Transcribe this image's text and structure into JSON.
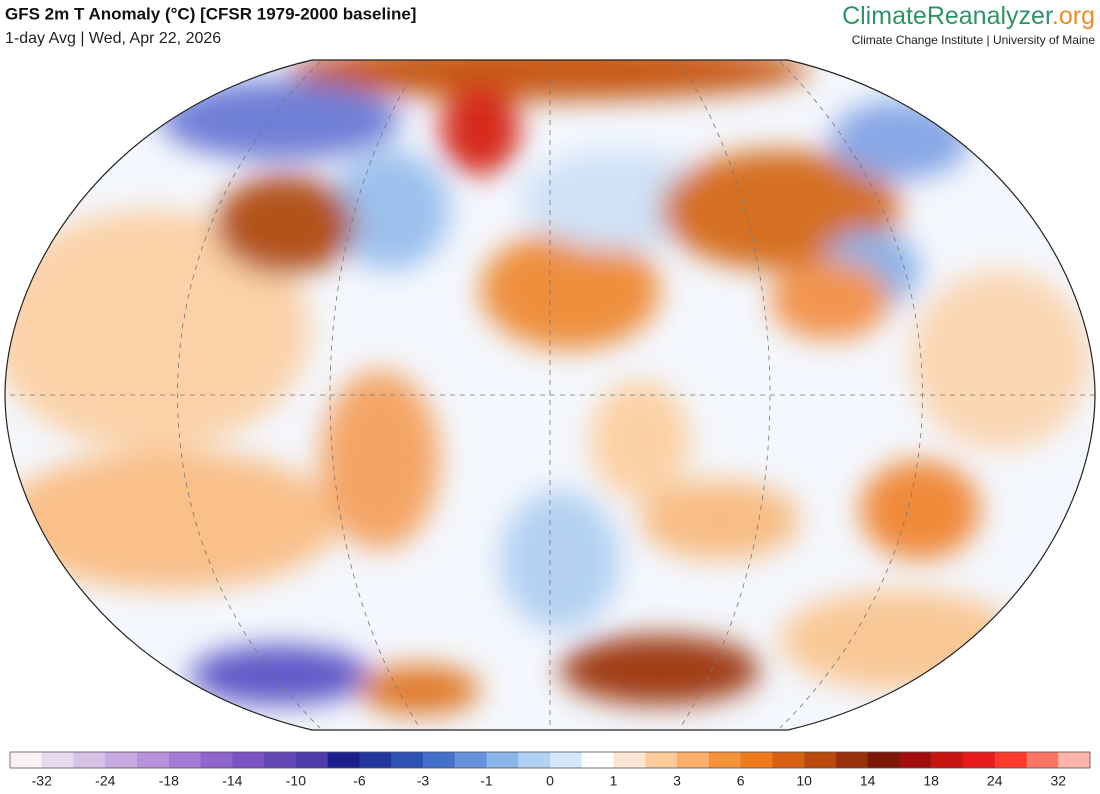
{
  "header": {
    "title": "GFS 2m T Anomaly (°C) [CFSR 1979-2000 baseline]",
    "subtitle": "1-day Avg | Wed, Apr 22, 2026"
  },
  "branding": {
    "name": "ClimateReanalyzer",
    "suffix": ".org",
    "tagline": "Climate Change Institute | University of Maine"
  },
  "colorbar": {
    "colors": [
      "#fdf0f2",
      "#e9d9ef",
      "#d9c2e8",
      "#c8a9e2",
      "#b892dc",
      "#a47bd5",
      "#9065cd",
      "#7a53c3",
      "#6446b6",
      "#4e3aa9",
      "#1b1f8e",
      "#2437a0",
      "#2f52b6",
      "#4470cb",
      "#6692dc",
      "#8cb5ea",
      "#b0d0f4",
      "#d3e6fa",
      "#ffffff",
      "#fde6cf",
      "#fbcb9c",
      "#f9ae69",
      "#f5923c",
      "#ee7a1f",
      "#d86214",
      "#bb4a0f",
      "#9a300b",
      "#7c1606",
      "#a40c0c",
      "#c91414",
      "#e61a1a",
      "#fd3a2c",
      "#fb7566",
      "#fbb5ab"
    ],
    "ticks": [
      -32,
      -24,
      -18,
      -14,
      -10,
      -6,
      -3,
      -1,
      0,
      1,
      3,
      6,
      10,
      14,
      18,
      24,
      32
    ]
  }
}
